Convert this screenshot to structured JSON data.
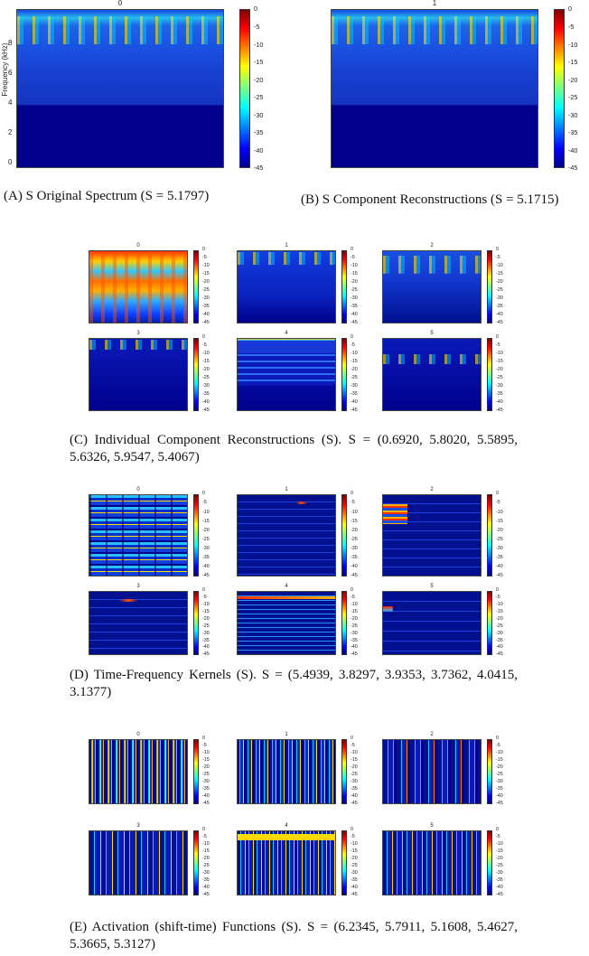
{
  "top_panels": [
    {
      "title": "0",
      "caption": "(A) S Original Spectrum (S = 5.1797)"
    },
    {
      "title": "1",
      "caption": "(B) S Component Reconstructions (S = 5.1715)"
    }
  ],
  "y_axis": {
    "label": "Frequency (kHz)",
    "ticks": [
      0,
      2,
      4,
      6,
      8
    ]
  },
  "colorbar_ticks": [
    0,
    -5,
    -10,
    -15,
    -20,
    -25,
    -30,
    -35,
    -40,
    -45
  ],
  "grids": [
    {
      "titles": [
        "0",
        "1",
        "2",
        "3",
        "4",
        "5"
      ],
      "caption": "(C) Individual Component Reconstructions (S). S = (0.6920, 5.8020, 5.5895, 5.6326, 5.9547, 5.4067)"
    },
    {
      "titles": [
        "0",
        "1",
        "2",
        "3",
        "4",
        "5"
      ],
      "caption": "(D) Time-Frequency Kernels (S). S = (5.4939, 3.8297, 3.9353, 3.7362, 4.0415, 3.1377)"
    },
    {
      "titles": [
        "0",
        "1",
        "2",
        "3",
        "4",
        "5"
      ],
      "caption": "(E) Activation (shift-time) Functions (S). S = (6.2345, 5.7911, 5.1608, 5.4627, 5.3665, 5.3127)"
    }
  ]
}
